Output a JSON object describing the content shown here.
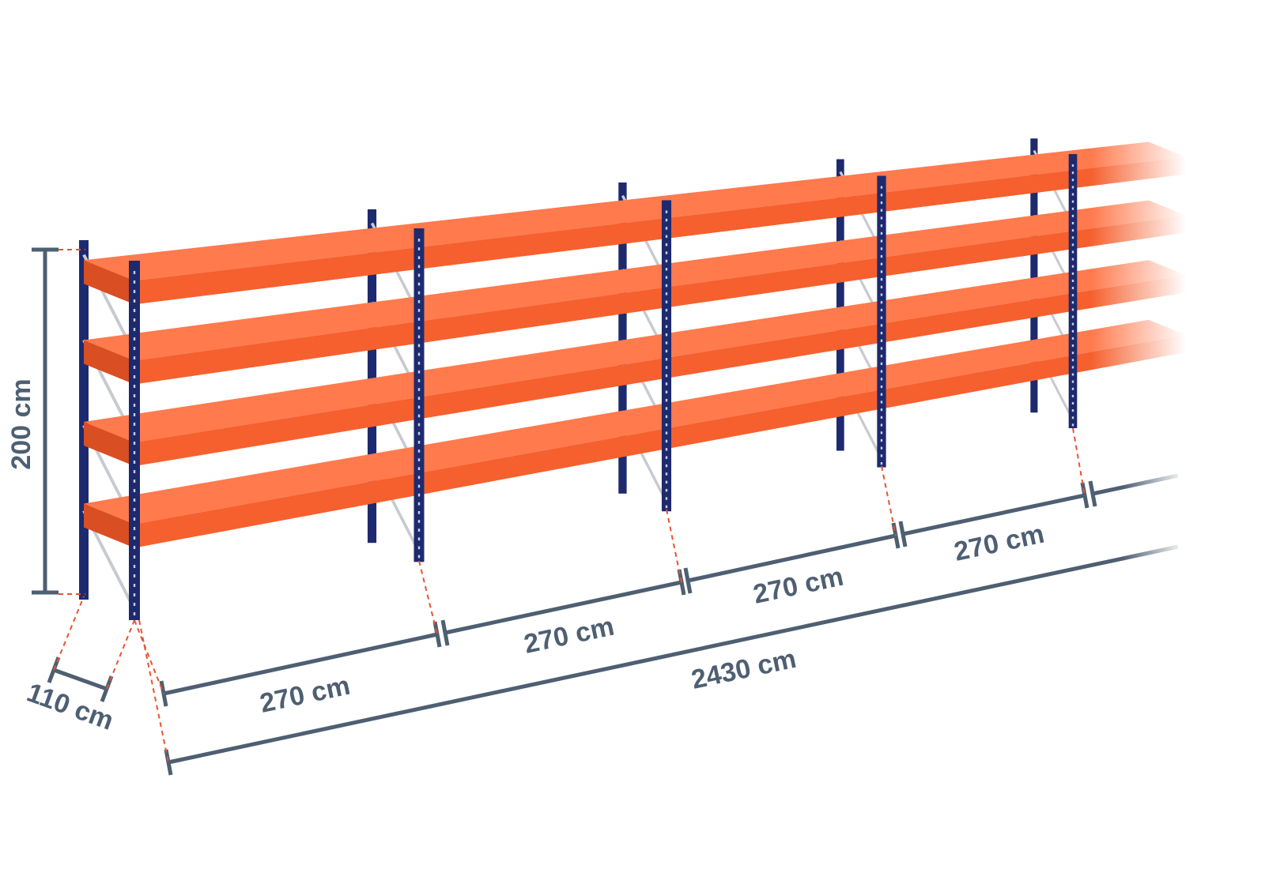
{
  "dimensions": {
    "height": "200 cm",
    "depth": "110 cm",
    "bays": [
      "270 cm",
      "270 cm",
      "270 cm",
      "270 cm"
    ],
    "total_length": "2430 cm"
  },
  "colors": {
    "upright": "#1e2a6e",
    "shelf": "#f5602e",
    "shelf_top": "#ff7a4d",
    "bracing": "#c7cbd1",
    "dimension_line": "#4e5f72",
    "guide_dash": "#e8542f"
  }
}
